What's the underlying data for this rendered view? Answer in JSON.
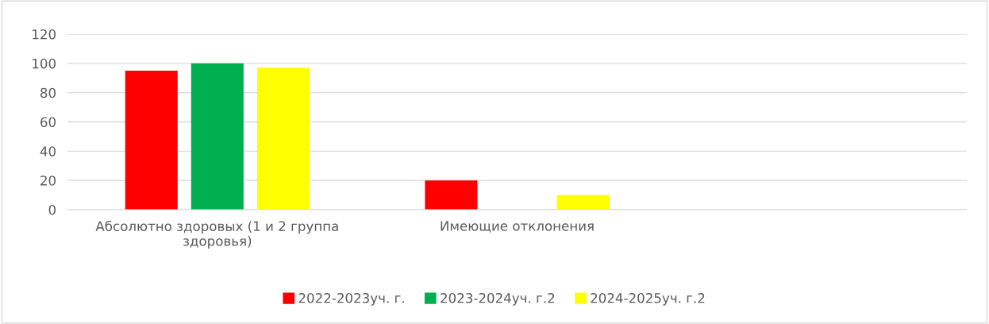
{
  "chart_data": {
    "type": "bar",
    "categories": [
      "Абсолютно здоровых (1 и 2 группа здоровья)",
      "Имеющие отклонения",
      null
    ],
    "series": [
      {
        "name": "2022-2023уч. г.",
        "color": "#ff0000",
        "values": [
          95,
          20,
          null
        ]
      },
      {
        "name": "2023-2024уч. г.2",
        "color": "#00b050",
        "values": [
          100,
          null,
          null
        ]
      },
      {
        "name": "2024-2025уч. г.2",
        "color": "#ffff00",
        "values": [
          97,
          10,
          null
        ]
      }
    ],
    "ylim": [
      0,
      120
    ],
    "yticks": [
      0,
      20,
      40,
      60,
      80,
      100,
      120
    ],
    "grid": "y",
    "legend": "bottom"
  }
}
